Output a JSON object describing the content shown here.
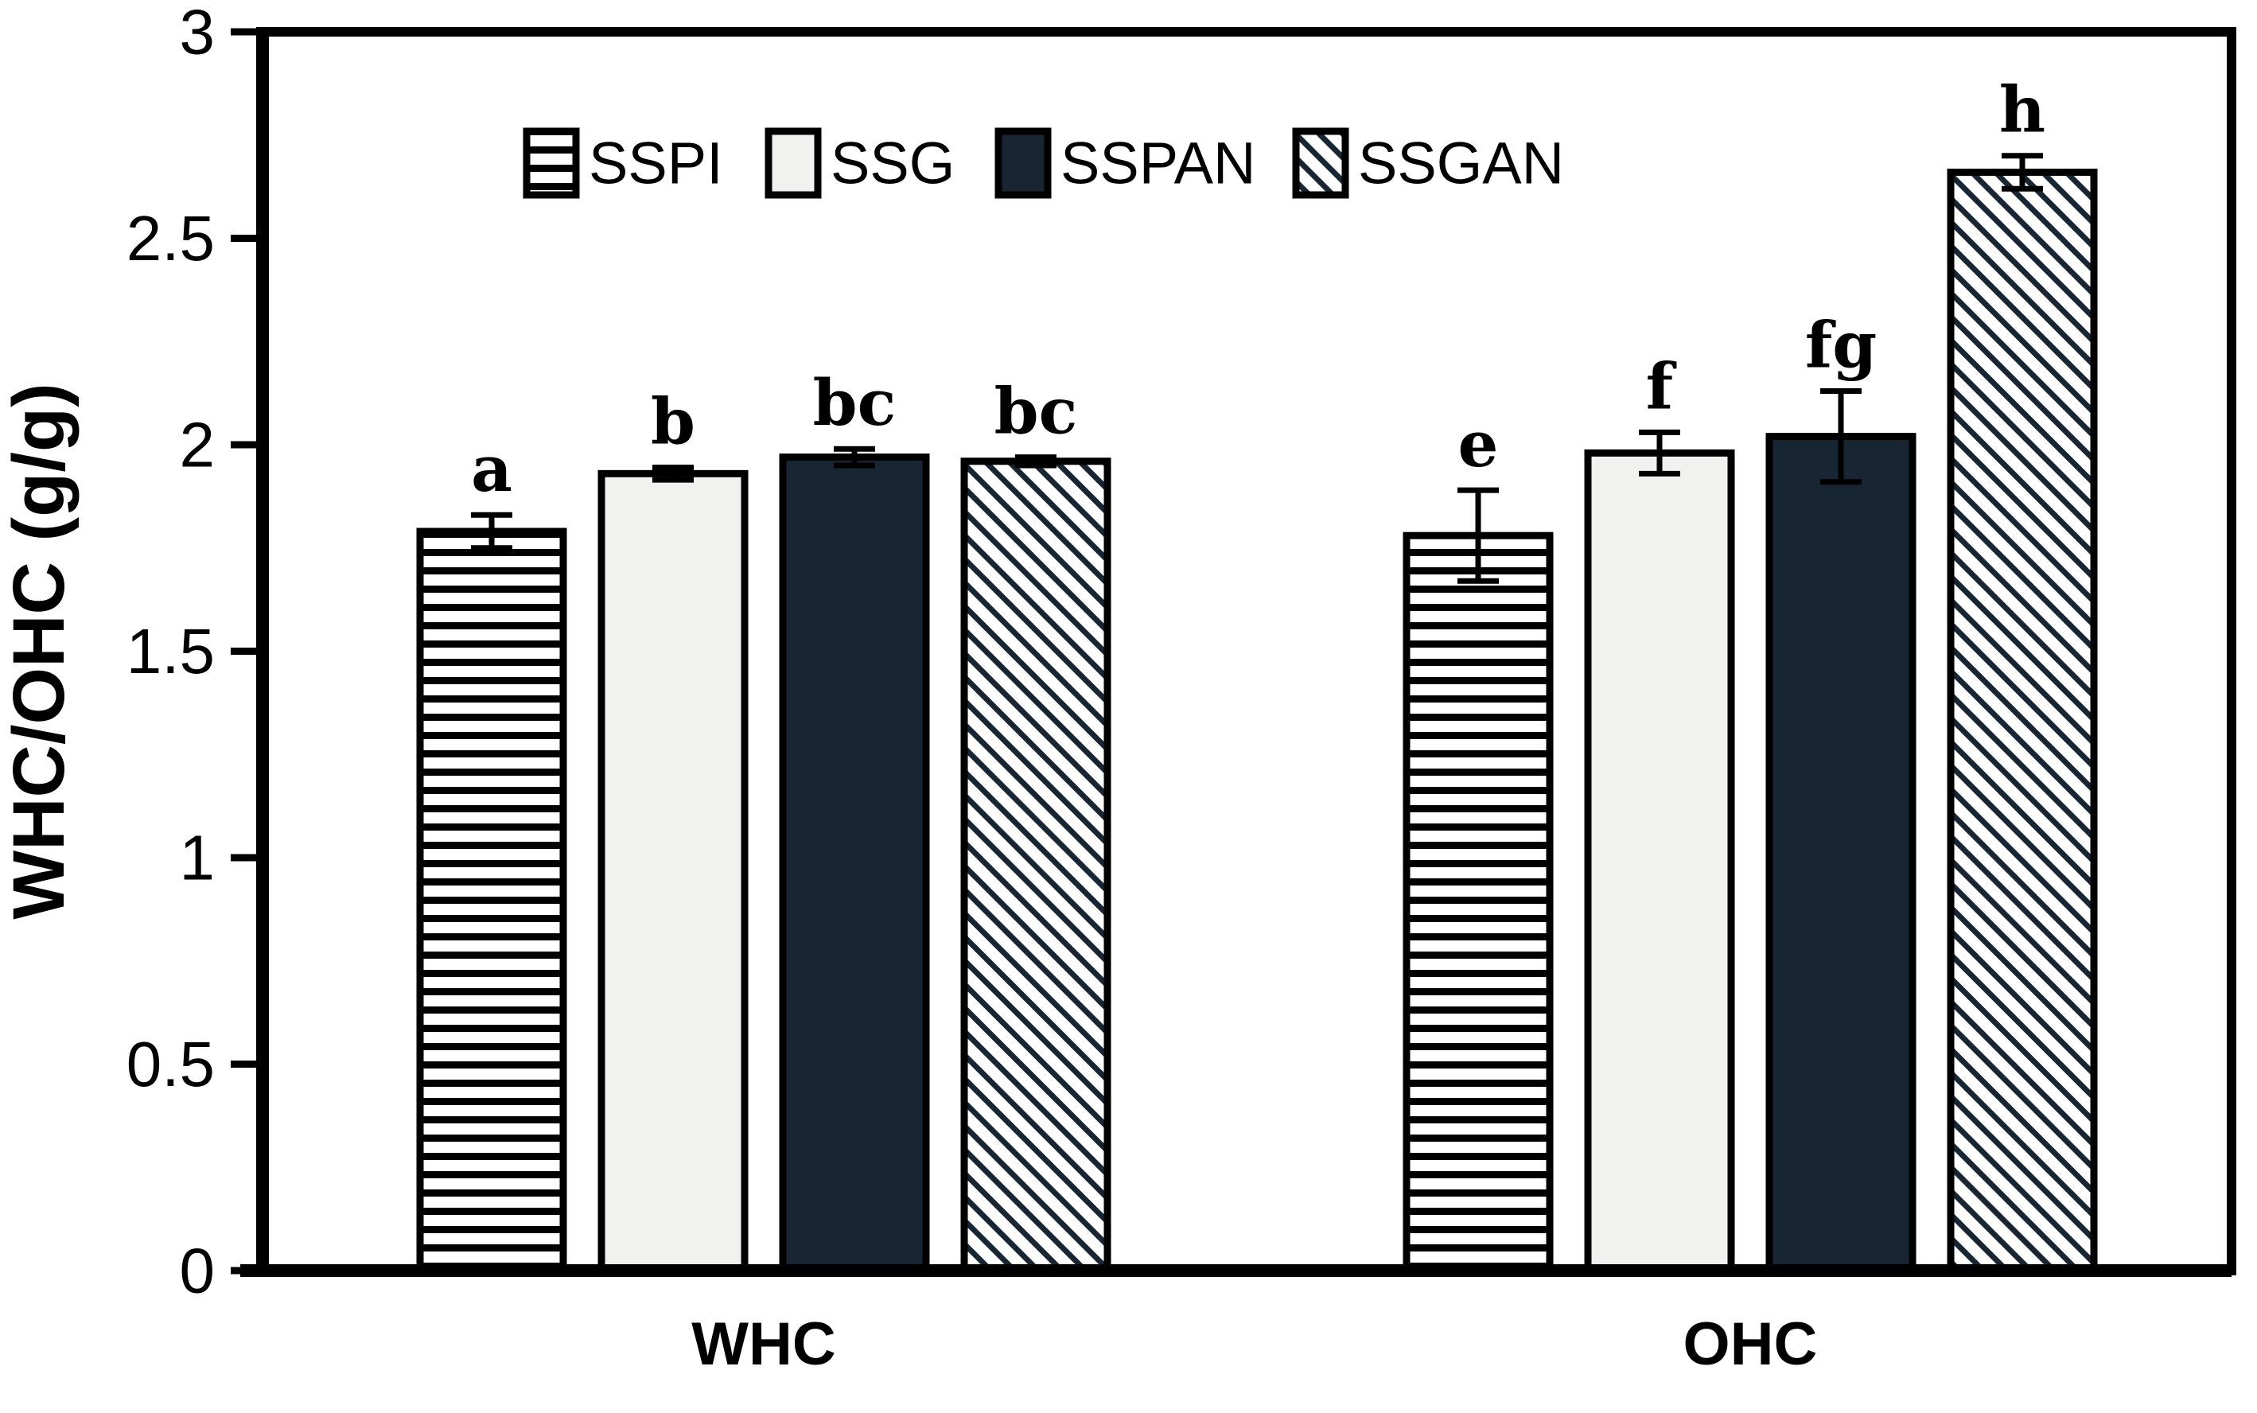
{
  "figure": {
    "background": "#ffffff",
    "frame_color": "#000000",
    "error_bar_color": "#000000"
  },
  "chart_data": {
    "type": "bar",
    "title": "",
    "xlabel": "",
    "ylabel": "WHC/OHC (g/g)",
    "ylim": [
      0,
      3
    ],
    "yticks": [
      0,
      0.5,
      1,
      1.5,
      2,
      2.5,
      3
    ],
    "ytick_labels": [
      "0",
      "0.5",
      "1",
      "1.5",
      "2",
      "2.5",
      "3"
    ],
    "categories": [
      "WHC",
      "OHC"
    ],
    "grid": false,
    "legend_position": "top-center-inside",
    "series": [
      {
        "name": "SSPI",
        "pattern": "horizontal-stripes",
        "fill": "#ffffff",
        "stripe_color": "#000000",
        "values": [
          1.79,
          1.78
        ],
        "errors": [
          0.04,
          0.11
        ],
        "sig_letters": [
          "a",
          "e"
        ]
      },
      {
        "name": "SSG",
        "pattern": "solid",
        "fill": "#f1f1ef",
        "stripe_color": "",
        "values": [
          1.93,
          1.98
        ],
        "errors": [
          0.015,
          0.05
        ],
        "sig_letters": [
          "b",
          "f"
        ]
      },
      {
        "name": "SSPAN",
        "pattern": "solid",
        "fill": "#182634",
        "stripe_color": "",
        "values": [
          1.97,
          2.02
        ],
        "errors": [
          0.02,
          0.11
        ],
        "sig_letters": [
          "bc",
          "fg"
        ]
      },
      {
        "name": "SSGAN",
        "pattern": "diagonal-stripes",
        "fill": "#ffffff",
        "stripe_color": "#182634",
        "values": [
          1.96,
          2.66
        ],
        "errors": [
          0.01,
          0.04
        ],
        "sig_letters": [
          "bc",
          "h"
        ]
      }
    ]
  }
}
